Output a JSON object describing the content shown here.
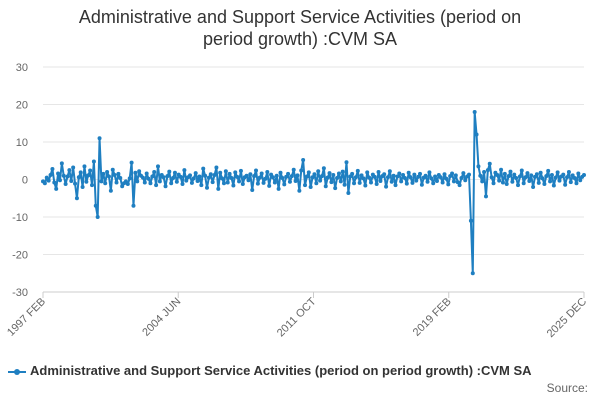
{
  "title_line1": "Administrative and Support Service Activities (period on",
  "title_line2": "period growth) :CVM SA",
  "legend_label": "Administrative and Support Service Activities (period on period growth) :CVM SA",
  "source_label": "Source:",
  "colors": {
    "series": "#1f7fc1",
    "grid": "#e6e6e6",
    "axis": "#cccccc"
  },
  "chart_data": {
    "type": "line",
    "title": "Administrative and Support Service Activities (period on period growth) :CVM SA",
    "xlabel": "",
    "ylabel": "",
    "x_start": "1997 FEB",
    "x_end": "2025 DEC",
    "x_ticks": [
      "1997 FEB",
      "2004 JUN",
      "2011 OCT",
      "2019 FEB",
      "2025 DEC"
    ],
    "ylim": [
      -30,
      30
    ],
    "y_ticks": [
      -30,
      -20,
      -10,
      0,
      10,
      20,
      30
    ],
    "grid": true,
    "legend_position": "bottom",
    "series": [
      {
        "name": "Administrative and Support Service Activities (period on period growth) :CVM SA",
        "values": [
          -0.5,
          -1.0,
          0.5,
          -0.3,
          1.2,
          2.8,
          -0.8,
          -2.5,
          1.6,
          -0.2,
          4.3,
          1.0,
          -1.2,
          0.8,
          2.5,
          -0.4,
          3.2,
          -1.1,
          -5.0,
          0.6,
          1.9,
          -2.0,
          3.5,
          -0.6,
          1.1,
          2.4,
          -1.5,
          4.8,
          -7.0,
          -10.0,
          11.0,
          -0.5,
          1.5,
          -1.0,
          2.0,
          0.8,
          -3.0,
          2.6,
          1.2,
          -0.8,
          1.5,
          0.4,
          -1.8,
          -1.0,
          -0.5,
          -1.2,
          0.3,
          4.5,
          -7.0,
          1.8,
          -0.5,
          2.2,
          1.0,
          0.5,
          -0.8,
          1.6,
          0.2,
          -1.0,
          0.8,
          2.0,
          -1.5,
          3.5,
          -0.5,
          1.2,
          0.6,
          -1.8,
          0.9,
          2.1,
          -1.0,
          0.4,
          1.8,
          -0.6,
          1.3,
          0.7,
          -1.2,
          2.5,
          -0.3,
          0.6,
          1.1,
          -0.9,
          0.3,
          1.7,
          -0.4,
          0.8,
          -1.5,
          2.9,
          1.0,
          -2.2,
          0.5,
          1.4,
          -0.7,
          1.2,
          3.2,
          -2.5,
          1.8,
          0.3,
          -1.0,
          2.2,
          -0.8,
          1.5,
          0.4,
          -1.6,
          1.9,
          0.7,
          -0.5,
          2.3,
          -1.2,
          0.6,
          1.0,
          -0.2,
          1.4,
          -2.8,
          0.9,
          2.4,
          -1.1,
          0.5,
          1.6,
          -0.9,
          0.2,
          2.0,
          -1.7,
          1.3,
          0.6,
          -0.8,
          1.0,
          -2.5,
          1.8,
          0.4,
          -1.3,
          0.7,
          1.5,
          -0.6,
          0.9,
          2.6,
          -0.4,
          1.1,
          -3.0,
          2.4,
          5.2,
          -1.5,
          0.8,
          1.9,
          -2.0,
          0.6,
          1.4,
          -1.0,
          2.2,
          -0.3,
          0.9,
          3.0,
          -1.8,
          0.5,
          1.7,
          -0.7,
          1.2,
          -2.3,
          0.4,
          1.6,
          -0.5,
          2.1,
          -1.4,
          4.6,
          -3.6,
          0.8,
          1.5,
          -1.0,
          0.6,
          2.3,
          -0.9,
          1.1,
          0.3,
          -1.6,
          1.9,
          0.5,
          -0.8,
          1.3,
          0.7,
          -1.2,
          2.0,
          -0.4,
          0.9,
          1.4,
          -1.9,
          0.6,
          2.2,
          -0.6,
          1.0,
          -1.5,
          0.8,
          1.6,
          -0.5,
          1.2,
          0.4,
          -1.1,
          1.8,
          0.6,
          -0.9,
          1.3,
          -0.3,
          0.7,
          1.5,
          -1.4,
          0.5,
          1.0,
          -0.6,
          1.9,
          0.3,
          -1.0,
          0.8,
          -0.4,
          1.2,
          0.6,
          -0.8,
          1.4,
          0.2,
          -1.3,
          0.9,
          1.6,
          -0.5,
          1.1,
          -0.7,
          -1.5,
          0.4,
          1.7,
          -0.2,
          0.8,
          1.3,
          -11.0,
          -25.0,
          18.0,
          12.0,
          3.5,
          1.0,
          -0.5,
          2.0,
          -4.5,
          2.5,
          4.2,
          0.6,
          -1.0,
          1.8,
          1.2,
          -0.3,
          2.6,
          -0.8,
          1.5,
          -1.2,
          0.9,
          2.1,
          -0.6,
          1.3,
          0.4,
          -1.5,
          0.8,
          2.4,
          -1.0,
          0.6,
          1.7,
          -0.4,
          1.1,
          -2.0,
          0.7,
          1.4,
          -0.9,
          1.8,
          0.3,
          -1.2,
          0.9,
          2.3,
          -0.5,
          1.2,
          -1.6,
          0.5,
          1.9,
          -0.3,
          0.8,
          1.3,
          -1.4,
          0.6,
          2.0,
          -0.7,
          1.1,
          0.4,
          -1.0,
          1.6,
          -0.2,
          0.7,
          1.2
        ]
      }
    ]
  }
}
